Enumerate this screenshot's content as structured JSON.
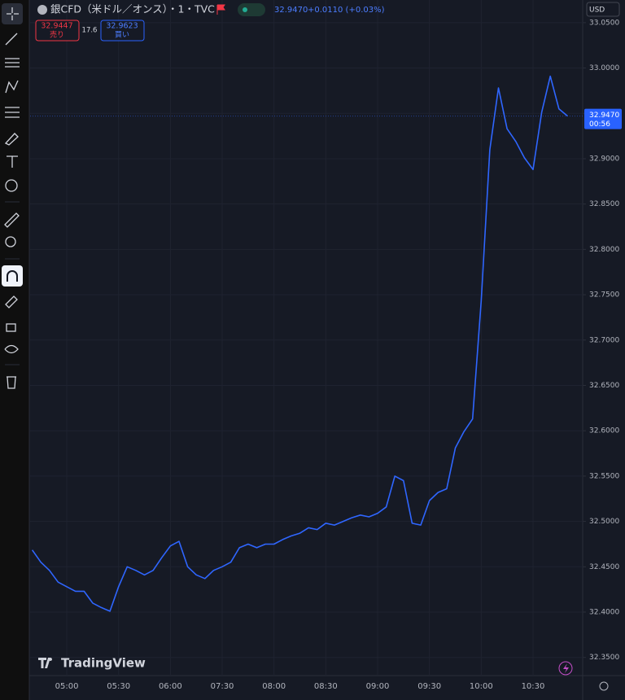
{
  "header": {
    "symbol": "銀CFD（米ドル／オンス）・1・TVC",
    "price": "32.9470",
    "change": "+0.0110 (+0.03%)",
    "sell": "32.9447",
    "sell_label": "売り",
    "spread": "17.6",
    "buy": "32.9623",
    "buy_label": "買い",
    "currency": "USD",
    "countdown": "00:56",
    "brand": "TradingView"
  },
  "chart_data": {
    "type": "line",
    "color": "#2f66ff",
    "grid": true,
    "categories": [
      null,
      null,
      null,
      null,
      "05:00",
      null,
      null,
      null,
      null,
      null,
      "05:30",
      null,
      null,
      null,
      null,
      null,
      "06:00",
      null,
      null,
      null,
      null,
      null,
      "07:30",
      null,
      null,
      null,
      null,
      null,
      "08:00",
      null,
      null,
      null,
      null,
      null,
      "08:30",
      null,
      null,
      null,
      null,
      null,
      "09:00",
      null,
      null,
      null,
      null,
      null,
      "09:30",
      null,
      null,
      null,
      null,
      null,
      "10:00",
      null,
      null,
      null,
      null,
      null,
      "10:30",
      null,
      null,
      null,
      null
    ],
    "values": [
      32.4685,
      32.455,
      32.446,
      32.433,
      32.428,
      32.423,
      32.423,
      32.41,
      32.405,
      32.401,
      32.428,
      32.45,
      32.446,
      32.441,
      32.446,
      32.46,
      32.473,
      32.478,
      32.45,
      32.441,
      32.437,
      32.446,
      32.45,
      32.455,
      32.471,
      32.475,
      32.471,
      32.475,
      32.475,
      32.48,
      32.484,
      32.487,
      32.493,
      32.491,
      32.498,
      32.496,
      32.5,
      32.504,
      32.507,
      32.505,
      32.509,
      32.516,
      32.55,
      32.545,
      32.498,
      32.496,
      32.523,
      32.532,
      32.536,
      32.581,
      32.599,
      32.613,
      32.743,
      32.91,
      32.978,
      32.933,
      32.919,
      32.901,
      32.888,
      32.951,
      32.991,
      32.955,
      32.947
    ],
    "ylim": [
      32.33,
      33.075
    ],
    "yticks": [
      {
        "value": 32.35,
        "label": "32.3500"
      },
      {
        "value": 32.4,
        "label": "32.4000"
      },
      {
        "value": 32.45,
        "label": "32.4500"
      },
      {
        "value": 32.5,
        "label": "32.5000"
      },
      {
        "value": 32.55,
        "label": "32.5500"
      },
      {
        "value": 32.6,
        "label": "32.6000"
      },
      {
        "value": 32.65,
        "label": "32.6500"
      },
      {
        "value": 32.7,
        "label": "32.7000"
      },
      {
        "value": 32.75,
        "label": "32.7500"
      },
      {
        "value": 32.8,
        "label": "32.8000"
      },
      {
        "value": 32.85,
        "label": "32.8500"
      },
      {
        "value": 32.9,
        "label": "32.9000"
      },
      {
        "value": 32.95,
        "label": "32.9500"
      },
      {
        "value": 33.0,
        "label": "33.0000"
      },
      {
        "value": 33.05,
        "label": "33.0500"
      }
    ],
    "last_price": {
      "value": 32.947,
      "label": "32.9470"
    }
  }
}
